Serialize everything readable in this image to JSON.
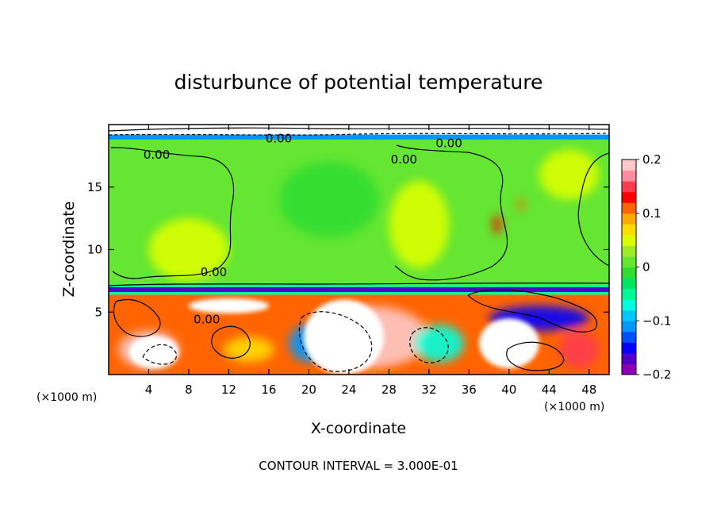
{
  "chart_data": {
    "type": "heatmap",
    "title": "disturbunce of potential temperature",
    "xlabel": "X-coordinate",
    "ylabel": "Z-coordinate",
    "x_unit": "(×1000 m)",
    "y_unit": "(×1000 m)",
    "xlim": [
      0,
      50
    ],
    "ylim": [
      0,
      20
    ],
    "x_ticks": [
      4,
      8,
      12,
      16,
      20,
      24,
      28,
      32,
      36,
      40,
      44,
      48
    ],
    "y_ticks": [
      5,
      10,
      15
    ],
    "colorbar": {
      "min": -0.2,
      "max": 0.2,
      "tick_values": [
        0.2,
        0.1,
        0,
        -0.1,
        -0.2
      ],
      "tick_labels": [
        "0.2",
        "0.1",
        "0",
        "−0.1",
        "−0.2"
      ],
      "colors": [
        "#8c00b4",
        "#5000c8",
        "#0000ff",
        "#0050ff",
        "#0096ff",
        "#00c8ff",
        "#00ffdc",
        "#00fa96",
        "#00e664",
        "#32dc32",
        "#64e632",
        "#a0eb28",
        "#dcff00",
        "#ffdc00",
        "#ffaa00",
        "#ff6400",
        "#ff0000",
        "#ff3c50",
        "#ff8ca0",
        "#ffc8c8"
      ]
    },
    "contour_labels": [
      {
        "text": "0.00",
        "x": 4.8,
        "z": 17.6
      },
      {
        "text": "0.00",
        "x": 29.5,
        "z": 17.2
      },
      {
        "text": "0.00",
        "x": 10.5,
        "z": 8.2
      },
      {
        "text": "0.00",
        "x": 9.8,
        "z": 4.4
      },
      {
        "text": "0.00",
        "x": 17.0,
        "z": 18.9
      },
      {
        "text": "0.00",
        "x": 34.0,
        "z": 18.5
      }
    ],
    "bands": [
      {
        "name": "upper-boundary",
        "z0": 19.2,
        "z1": 20,
        "value": null
      },
      {
        "name": "upper-layer",
        "z0": 7.0,
        "z1": 18.8,
        "value": 0.0
      },
      {
        "name": "inversion",
        "z0": 6.6,
        "z1": 7.0,
        "value": -0.17
      },
      {
        "name": "lower-layer",
        "z0": 0,
        "z1": 6.4,
        "value": 0.12
      }
    ],
    "anomalies": [
      {
        "x": 8,
        "z": 10,
        "rx": 4,
        "rz": 2.5,
        "value": 0.05
      },
      {
        "x": 31,
        "z": 12,
        "rx": 3,
        "rz": 3.5,
        "value": 0.05
      },
      {
        "x": 46,
        "z": 16,
        "rx": 3,
        "rz": 2,
        "value": 0.05
      },
      {
        "x": 22,
        "z": 14,
        "rx": 5,
        "rz": 3,
        "value": -0.02
      },
      {
        "x": 26,
        "z": 3,
        "rx": 6,
        "rz": 2.5,
        "value": 0.2
      },
      {
        "x": 4,
        "z": 2,
        "rx": 3,
        "rz": 1.5,
        "value": 0.2
      },
      {
        "x": 20,
        "z": 2.5,
        "rx": 2,
        "rz": 1.5,
        "value": -0.12
      },
      {
        "x": 43,
        "z": 4.5,
        "rx": 5,
        "rz": 1,
        "value": -0.15
      },
      {
        "x": 33,
        "z": 2.5,
        "rx": 2.5,
        "rz": 1.5,
        "value": -0.08
      },
      {
        "x": 14,
        "z": 2,
        "rx": 2.5,
        "rz": 1,
        "value": 0.07
      },
      {
        "x": 47,
        "z": 2,
        "rx": 2,
        "rz": 1.5,
        "value": 0.15
      },
      {
        "x": 38.8,
        "z": 12,
        "rx": 0.4,
        "rz": 0.8,
        "value": 0.13
      },
      {
        "x": 41.2,
        "z": 13.6,
        "rx": 0.3,
        "rz": 0.5,
        "value": 0.12
      }
    ],
    "white_regions": [
      {
        "x": 23.5,
        "z": 3,
        "rx": 4,
        "rz": 3
      },
      {
        "x": 40,
        "z": 2.5,
        "rx": 3,
        "rz": 2
      },
      {
        "x": 4.5,
        "z": 1.8,
        "rx": 2.5,
        "rz": 1.3
      },
      {
        "x": 12,
        "z": 5.5,
        "rx": 4,
        "rz": 0.6
      }
    ]
  },
  "footer": {
    "contour_interval": "CONTOUR INTERVAL = 3.000E-01"
  }
}
